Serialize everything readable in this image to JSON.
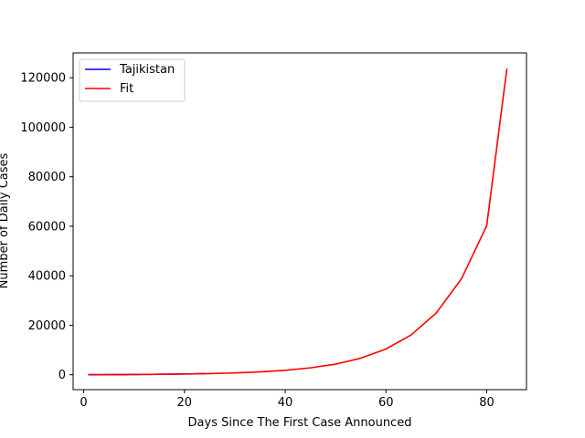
{
  "chart_data": {
    "type": "line",
    "title": "",
    "xlabel": "Days Since The First Case Announced",
    "ylabel": "Number of Daily Cases",
    "xlim": [
      -2.1,
      87.9
    ],
    "ylim": [
      -6000,
      130000
    ],
    "xticks": [
      0,
      20,
      40,
      60,
      80
    ],
    "yticks": [
      0,
      20000,
      40000,
      60000,
      80000,
      100000,
      120000
    ],
    "legend_position": "top-left",
    "grid": false,
    "series": [
      {
        "name": "Tajikistan",
        "color": "#0000ff",
        "x": [
          1,
          2,
          3,
          4,
          5,
          6,
          7,
          8,
          9,
          10,
          11,
          12,
          13,
          14,
          15,
          16,
          17,
          18,
          19,
          20,
          21,
          22,
          23,
          24
        ],
        "y": [
          15,
          20,
          28,
          35,
          45,
          55,
          65,
          75,
          90,
          105,
          115,
          130,
          150,
          170,
          190,
          210,
          240,
          260,
          290,
          320,
          350,
          380,
          420,
          470
        ]
      },
      {
        "name": "Fit",
        "color": "#ff0000",
        "x": [
          1,
          5,
          10,
          15,
          20,
          25,
          30,
          35,
          40,
          45,
          50,
          55,
          60,
          65,
          70,
          75,
          80,
          84
        ],
        "y": [
          60,
          85,
          130,
          200,
          310,
          480,
          750,
          1150,
          1800,
          2800,
          4300,
          6700,
          10400,
          16100,
          25000,
          38800,
          60200,
          123500
        ]
      }
    ]
  }
}
